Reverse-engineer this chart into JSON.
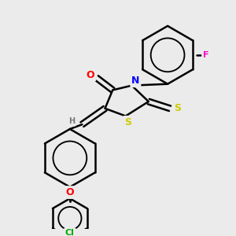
{
  "bg_color": "#ebebeb",
  "line_color": "#000000",
  "bond_width": 1.8,
  "atom_colors": {
    "O": "#ff0000",
    "N": "#0000ff",
    "S": "#cccc00",
    "F": "#ff00cc",
    "Cl": "#00aa00",
    "H": "#777777",
    "C": "#000000"
  },
  "figsize": [
    3.0,
    3.0
  ],
  "dpi": 100
}
